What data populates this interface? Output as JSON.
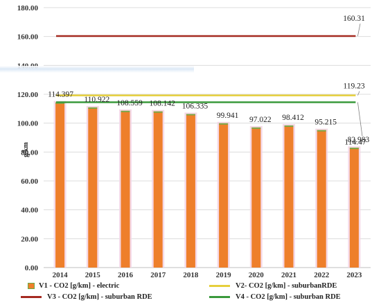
{
  "chart_data": {
    "type": "bar",
    "ylabel": "g/km",
    "ylim": [
      0,
      180
    ],
    "yticks": [
      "0.00",
      "20.00",
      "40.00",
      "60.00",
      "80.00",
      "100.00",
      "120.00",
      "140.00",
      "160.00",
      "180.00"
    ],
    "categories": [
      "2014",
      "2015",
      "2016",
      "2017",
      "2018",
      "2019",
      "2020",
      "2021",
      "2022",
      "2023"
    ],
    "bar_series": {
      "name": "V1 - CO2 [g/km] - electric",
      "color": "#ee7f2b",
      "values": [
        114.397,
        110.922,
        108.559,
        108.142,
        106.335,
        99.941,
        97.022,
        98.412,
        95.215,
        82.983
      ],
      "labels": [
        "114.397",
        "110.922",
        "108.559",
        "108.142",
        "106.335",
        "99.941",
        "97.022",
        "98.412",
        "95.215",
        "82.983"
      ]
    },
    "line_series": [
      {
        "name": "V2- CO2 [g/km] - suburbanRDE",
        "color": "#e6cf3c",
        "value": 119.23,
        "label": "119.23"
      },
      {
        "name": "V3 - CO2 [g/km] - suburban RDE",
        "color": "#a52a21",
        "value": 160.31,
        "label": "160.31"
      },
      {
        "name": "V4 - CO2 [g/km] - suburban RDE",
        "color": "#3a9a3c",
        "value": 114.47,
        "label": "114.47"
      }
    ],
    "grid": true,
    "legend_position": "bottom"
  }
}
